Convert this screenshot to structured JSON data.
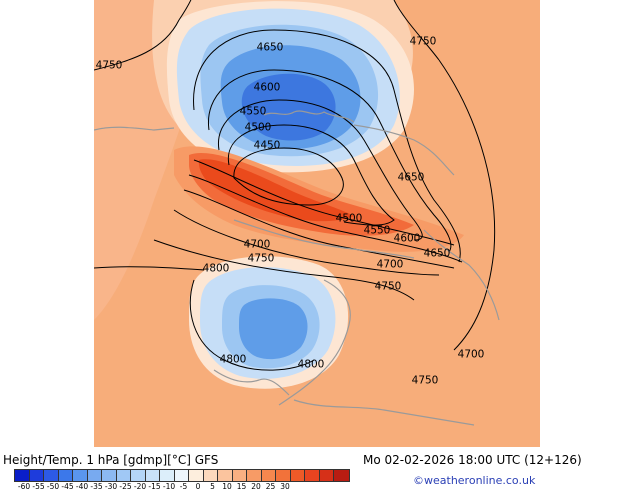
{
  "map": {
    "palette": {
      "ocean_warm": "#f9b58a",
      "land_warm": "#f7ad7a",
      "warm_light": "#fbd0b0",
      "pale": "#fde6d3",
      "cold_light": "#c6def7",
      "cold_mid": "#9cc6f2",
      "cold": "#5f9de8",
      "cold_deep": "#3d77df",
      "warm_strong": "#f26b3a",
      "warm_hot": "#ea4a1c",
      "coast": "#9a9a9a",
      "contour": "#000000"
    },
    "contour_labels": [
      {
        "id": "4650-top",
        "text": "4650"
      },
      {
        "id": "4750-nw",
        "text": "4750"
      },
      {
        "id": "4750-ne",
        "text": "4750"
      },
      {
        "id": "4600-top",
        "text": "4600"
      },
      {
        "id": "4550-top",
        "text": "4550"
      },
      {
        "id": "4500-top",
        "text": "4500"
      },
      {
        "id": "4450",
        "text": "4450"
      },
      {
        "id": "4650-east",
        "text": "4650"
      },
      {
        "id": "4500-mid",
        "text": "4500"
      },
      {
        "id": "4550-mid",
        "text": "4550"
      },
      {
        "id": "4600-mid",
        "text": "4600"
      },
      {
        "id": "4650-mid",
        "text": "4650"
      },
      {
        "id": "4700-west",
        "text": "4700"
      },
      {
        "id": "4750-west",
        "text": "4750"
      },
      {
        "id": "4700-mid",
        "text": "4700"
      },
      {
        "id": "4800-west",
        "text": "4800"
      },
      {
        "id": "4750-mid",
        "text": "4750"
      },
      {
        "id": "4700-se",
        "text": "4700"
      },
      {
        "id": "4800-sw",
        "text": "4800"
      },
      {
        "id": "4800-s",
        "text": "4800"
      },
      {
        "id": "4750-s",
        "text": "4750"
      }
    ]
  },
  "footer": {
    "title": "Height/Temp. 1 hPa [gdmp][°C] GFS",
    "timestamp": "Mo 02-02-2026 18:00 UTC (12+126)",
    "credit": "©weatheronline.co.uk"
  },
  "legend": {
    "colors": [
      "#0a1ec8",
      "#1e3cdc",
      "#2d5ae6",
      "#3c78ea",
      "#5a96ee",
      "#78aaf0",
      "#8cb9f2",
      "#a0c8f5",
      "#b4d5f7",
      "#c8e1f9",
      "#dceefa",
      "#eef6fc",
      "#fdeedd",
      "#fcd9bd",
      "#fbc49e",
      "#f9b082",
      "#f79b66",
      "#f5874e",
      "#f2723a",
      "#ee5a28",
      "#e84420",
      "#d63018",
      "#b81c12"
    ],
    "ticks": [
      "-60",
      "-55",
      "-50",
      "-45",
      "-40",
      "-35",
      "-30",
      "-25",
      "-20",
      "-15",
      "-10",
      "-5",
      "0",
      "5",
      "10",
      "15",
      "20",
      "25",
      "30"
    ]
  }
}
